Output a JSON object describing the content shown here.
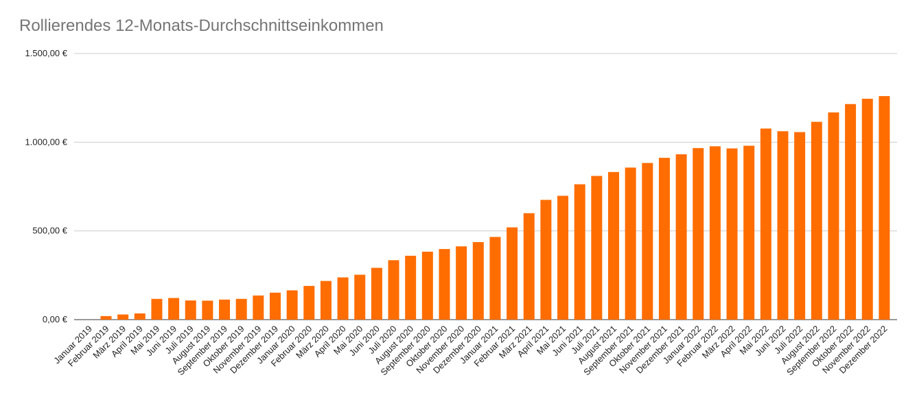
{
  "chart_data": {
    "type": "bar",
    "title": "Rollierendes 12-Monats-Durchschnittseinkommen",
    "xlabel": "",
    "ylabel": "",
    "ylim": [
      0,
      1500
    ],
    "yticks": [
      {
        "value": 0,
        "label": "0,00 €"
      },
      {
        "value": 500,
        "label": "500,00 €"
      },
      {
        "value": 1000,
        "label": "1.000,00 €"
      },
      {
        "value": 1500,
        "label": "1.500,00 €"
      }
    ],
    "grid": true,
    "legend": "none",
    "bar_color": "#ff6d01",
    "categories": [
      "Januar 2019",
      "Februar 2019",
      "März 2019",
      "April 2019",
      "Mai 2019",
      "Juni 2019",
      "Juli 2019",
      "August 2019",
      "September 2019",
      "Oktober 2019",
      "November 2019",
      "Dezember 2019",
      "Januar 2020",
      "Februar 2020",
      "März 2020",
      "April 2020",
      "Mai 2020",
      "Juni 2020",
      "Juli 2020",
      "August 2020",
      "September 2020",
      "Oktober 2020",
      "November 2020",
      "Dezember 2020",
      "Januar 2021",
      "Februar 2021",
      "März 2021",
      "April 2021",
      "Mai 2021",
      "Juni 2021",
      "Juli 2021",
      "August 2021",
      "September 2021",
      "Oktober 2021",
      "November 2021",
      "Dezember 2021",
      "Januar 2022",
      "Februar 2022",
      "März 2022",
      "April 2022",
      "Mai 2022",
      "Juni 2022",
      "Juli 2022",
      "August 2022",
      "September 2022",
      "Oktober 2022",
      "November 2022",
      "Dezember 2022"
    ],
    "values": [
      0,
      20,
      29,
      35,
      117,
      122,
      108,
      107,
      113,
      117,
      136,
      152,
      165,
      190,
      218,
      238,
      253,
      292,
      335,
      360,
      383,
      398,
      413,
      437,
      466,
      520,
      600,
      675,
      698,
      763,
      810,
      832,
      857,
      883,
      912,
      932,
      967,
      977,
      965,
      980,
      1077,
      1062,
      1057,
      1115,
      1168,
      1215,
      1245,
      1260
    ]
  }
}
